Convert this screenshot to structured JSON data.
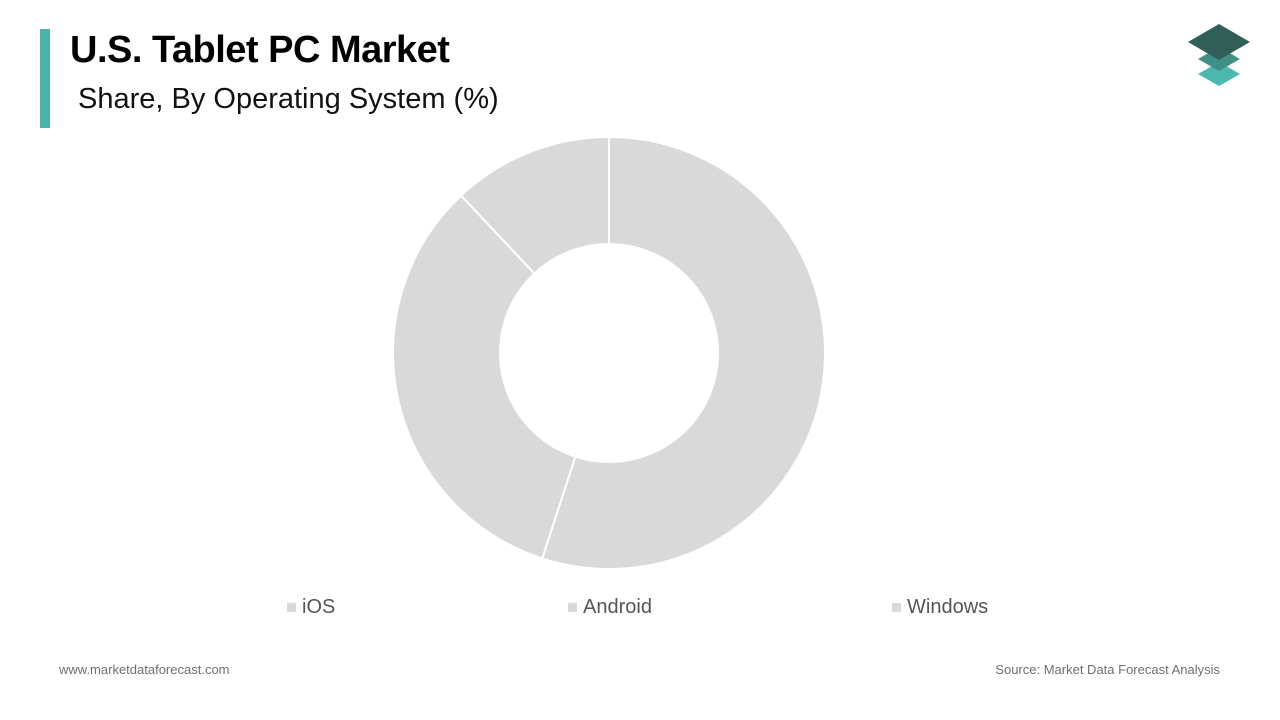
{
  "header": {
    "title": "U.S. Tablet PC Market",
    "subtitle": "Share, By Operating System (%)"
  },
  "colors": {
    "accent": "#4bb2ac",
    "slice": "#d9d9d9",
    "slice_border": "#ffffff",
    "logo_dark": "#2f5f57",
    "logo_mid": "#3f8f86",
    "logo_light": "#4bb8b0"
  },
  "logo": {
    "icon": "stacked-layers-logo"
  },
  "chart_data": {
    "type": "pie",
    "variant": "donut",
    "categories": [
      "iOS",
      "Android",
      "Windows"
    ],
    "values": [
      55,
      33,
      12
    ],
    "title": "U.S. Tablet PC Market",
    "subtitle": "Share, By Operating System (%)",
    "legend_position": "bottom",
    "data_labels": false
  },
  "footer": {
    "website": "www.marketdataforecast.com",
    "source": "Source: Market Data Forecast Analysis"
  }
}
